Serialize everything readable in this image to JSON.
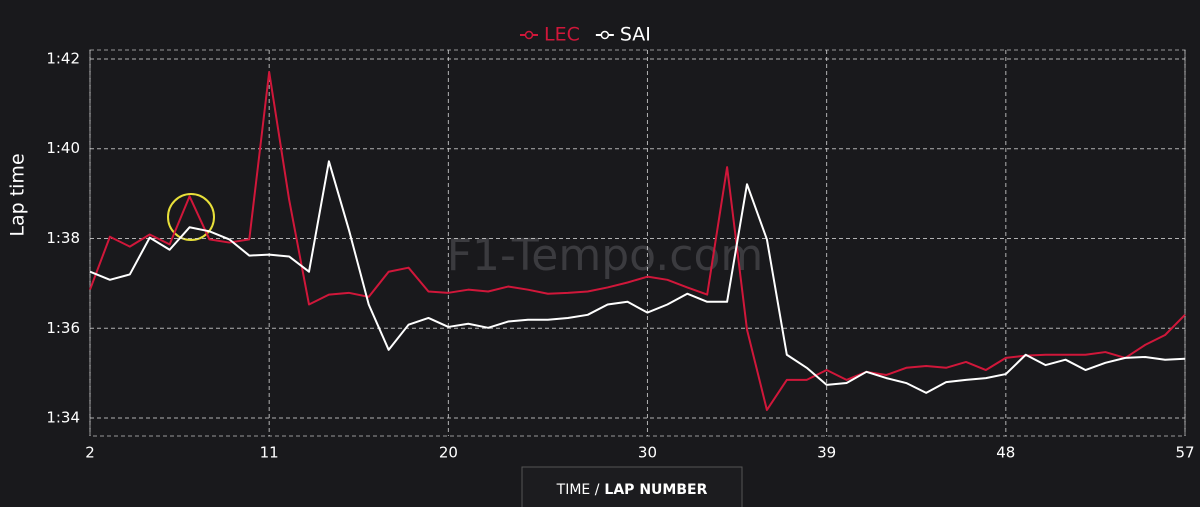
{
  "chart_data": {
    "type": "line",
    "ylabel": "Lap time",
    "watermark": "F1-Tempo.com",
    "xlabel_toggle": [
      "TIME /",
      "LAP NUMBER"
    ],
    "legend": "top-center",
    "grid": true,
    "x": [
      2,
      3,
      4,
      5,
      6,
      7,
      8,
      9,
      10,
      11,
      12,
      13,
      14,
      15,
      16,
      17,
      18,
      19,
      20,
      21,
      22,
      23,
      24,
      25,
      26,
      27,
      28,
      29,
      30,
      31,
      32,
      33,
      34,
      35,
      36,
      37,
      38,
      39,
      40,
      41,
      42,
      43,
      44,
      45,
      46,
      47,
      48,
      49,
      50,
      51,
      52,
      53,
      54,
      55,
      56,
      57
    ],
    "xlim": [
      2,
      57
    ],
    "xticks": [
      2,
      11,
      20,
      30,
      39,
      48,
      57
    ],
    "ylim": [
      93.6,
      102.2
    ],
    "yticks": [
      {
        "value": 94,
        "label": "1:34"
      },
      {
        "value": 96,
        "label": "1:36"
      },
      {
        "value": 98,
        "label": "1:38"
      },
      {
        "value": 100,
        "label": "1:40"
      },
      {
        "value": 102,
        "label": "1:42"
      }
    ],
    "series": [
      {
        "name": "LEC",
        "color": "#d0173a",
        "values": [
          96.86,
          98.04,
          97.82,
          98.09,
          97.87,
          98.94,
          97.98,
          97.91,
          97.98,
          101.71,
          98.87,
          96.53,
          96.75,
          96.79,
          96.7,
          97.26,
          97.35,
          96.82,
          96.79,
          96.86,
          96.82,
          96.93,
          96.86,
          96.77,
          96.79,
          96.82,
          96.91,
          97.02,
          97.15,
          97.08,
          96.91,
          96.75,
          99.59,
          95.97,
          94.18,
          94.85,
          94.85,
          95.07,
          94.85,
          95.03,
          94.96,
          95.12,
          95.16,
          95.12,
          95.25,
          95.07,
          95.34,
          95.39,
          95.41,
          95.41,
          95.41,
          95.47,
          95.34,
          95.63,
          95.85,
          96.3
        ]
      },
      {
        "name": "SAI",
        "color": "#ffffff",
        "values": [
          97.26,
          97.08,
          97.2,
          98.02,
          97.75,
          98.25,
          98.16,
          97.98,
          97.62,
          97.64,
          97.6,
          97.26,
          99.72,
          98.2,
          96.53,
          95.52,
          96.08,
          96.23,
          96.03,
          96.1,
          96.01,
          96.15,
          96.19,
          96.19,
          96.23,
          96.3,
          96.53,
          96.59,
          96.35,
          96.53,
          96.77,
          96.59,
          96.59,
          99.21,
          97.98,
          95.41,
          95.12,
          94.74,
          94.78,
          95.03,
          94.89,
          94.78,
          94.56,
          94.8,
          94.85,
          94.89,
          94.98,
          95.41,
          95.18,
          95.3,
          95.07,
          95.23,
          95.34,
          95.36,
          95.3,
          95.32
        ]
      }
    ]
  }
}
